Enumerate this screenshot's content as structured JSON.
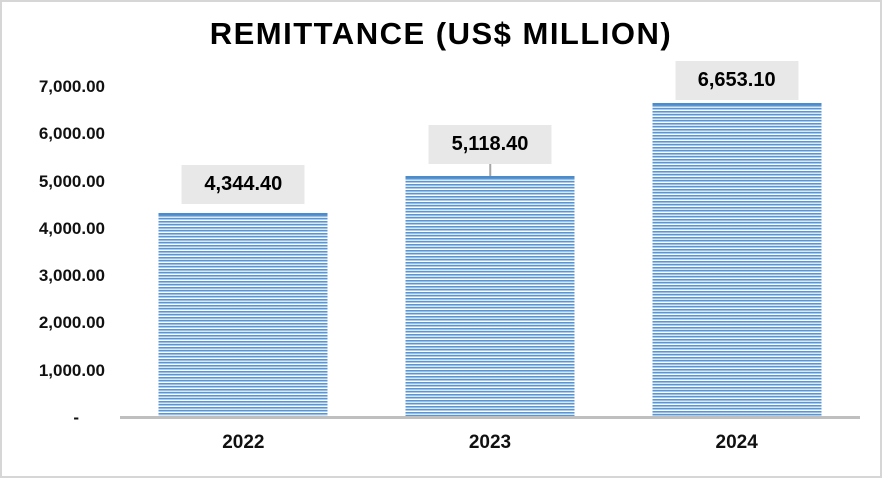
{
  "chart_data": {
    "type": "bar",
    "title": "REMITTANCE (US$ MILLION)",
    "categories": [
      "2022",
      "2023",
      "2024"
    ],
    "values": [
      4344.4,
      5118.4,
      6653.1
    ],
    "value_labels": [
      "4,344.40",
      "5,118.40",
      "6,653.10"
    ],
    "y_ticks": [
      "7,000.00",
      "6,000.00",
      "5,000.00",
      "4,000.00",
      "3,000.00",
      "2,000.00",
      "1,000.00",
      "-"
    ],
    "xlabel": "",
    "ylabel": "",
    "ylim": [
      0,
      7000
    ],
    "grid": false,
    "legend": false,
    "colors": {
      "bar_stripe_blue": "#5995d3",
      "bar_stripe_light": "#d9e8f6",
      "bar_stripe_white": "#fdfeff",
      "bar_top_edge": "#4d8cca",
      "value_label_box": "#e8e8e8",
      "axis_line": "#bfbfbf",
      "text": "#000000",
      "frame_border": "#d6d6d6"
    },
    "callouts": [
      {
        "gap": 9,
        "leader": false
      },
      {
        "gap": 12,
        "leader": true
      },
      {
        "gap": 3,
        "leader": false
      }
    ]
  }
}
